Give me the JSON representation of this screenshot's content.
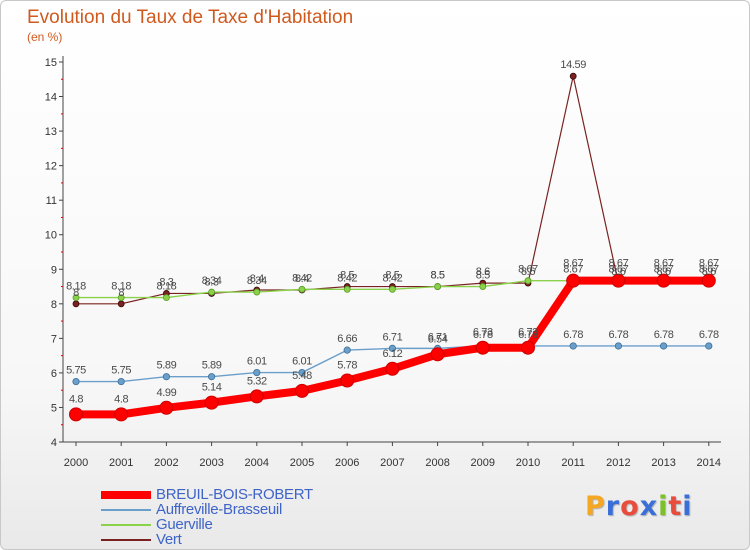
{
  "header": {
    "title": "Evolution du Taux de Taxe d'Habitation",
    "subtitle": "(en %)"
  },
  "logo": {
    "text": "Proxiti",
    "colors": [
      "#f5a623",
      "#3a6fd8",
      "#e84c3d",
      "#3a6fd8",
      "#7bbf2a",
      "#e84c3d",
      "#3a6fd8"
    ]
  },
  "chart_data": {
    "type": "line",
    "title": "Evolution du Taux de Taxe d'Habitation",
    "ylabel": "(en %)",
    "xlabel": "",
    "x": [
      "2000",
      "2001",
      "2002",
      "2003",
      "2004",
      "2005",
      "2006",
      "2007",
      "2008",
      "2009",
      "2010",
      "2011",
      "2012",
      "2013",
      "2014"
    ],
    "ylim": [
      4,
      15
    ],
    "yticks": [
      "4",
      "5",
      "6",
      "7",
      "8",
      "9",
      "10",
      "11",
      "12",
      "13",
      "14",
      "15"
    ],
    "grid": false,
    "legend": "bottom-left",
    "series": [
      {
        "name": "BREUIL-BOIS-ROBERT",
        "color": "#ff0000",
        "values": [
          4.8,
          4.8,
          4.99,
          5.14,
          5.32,
          5.48,
          5.78,
          6.12,
          6.54,
          6.73,
          6.73,
          8.67,
          8.67,
          8.67,
          8.67
        ],
        "labels": [
          "4.8",
          "4.8",
          "4.99",
          "5.14",
          "5.32",
          "5.48",
          "5.78",
          "6.12",
          "6.54",
          "6.73",
          "6.73",
          "8.67",
          "8.67",
          "8.67",
          "8.67"
        ]
      },
      {
        "name": "Auffreville-Brasseuil",
        "color": "#6a9fcb",
        "values": [
          5.75,
          5.75,
          5.89,
          5.89,
          6.01,
          6.01,
          6.66,
          6.71,
          6.71,
          6.78,
          6.78,
          6.78,
          6.78,
          6.78,
          6.78
        ],
        "labels": [
          "5.75",
          "5.75",
          "5.89",
          "5.89",
          "6.01",
          "6.01",
          "6.66",
          "6.71",
          "6.71",
          "6.78",
          "6.78",
          "6.78",
          "6.78",
          "6.78",
          "6.78"
        ]
      },
      {
        "name": "Guerville",
        "color": "#8ad24a",
        "values": [
          8.18,
          8.18,
          8.18,
          8.34,
          8.34,
          8.42,
          8.42,
          8.42,
          8.5,
          8.5,
          8.67,
          8.67,
          8.67,
          8.67,
          8.67
        ],
        "labels": [
          "8.18",
          "8.18",
          "8.18",
          "8.34",
          "8.34",
          "8.42",
          "8.42",
          "8.42",
          "8.5",
          "8.5",
          "8.67",
          "8.67",
          "8.67",
          "8.67",
          "8.67"
        ]
      },
      {
        "name": "Vert",
        "color": "#7a2222",
        "values": [
          8,
          8,
          8.3,
          8.3,
          8.4,
          8.4,
          8.5,
          8.5,
          8.5,
          8.6,
          8.6,
          14.59,
          8.6,
          8.6,
          8.6
        ],
        "labels": [
          "8",
          "8",
          "8.3",
          "8.3",
          "8.4",
          "8.4",
          "8.5",
          "8.5",
          "8.5",
          "8.6",
          "8.6",
          "14.59",
          "8.6",
          "8.6",
          "8.6"
        ]
      }
    ]
  }
}
